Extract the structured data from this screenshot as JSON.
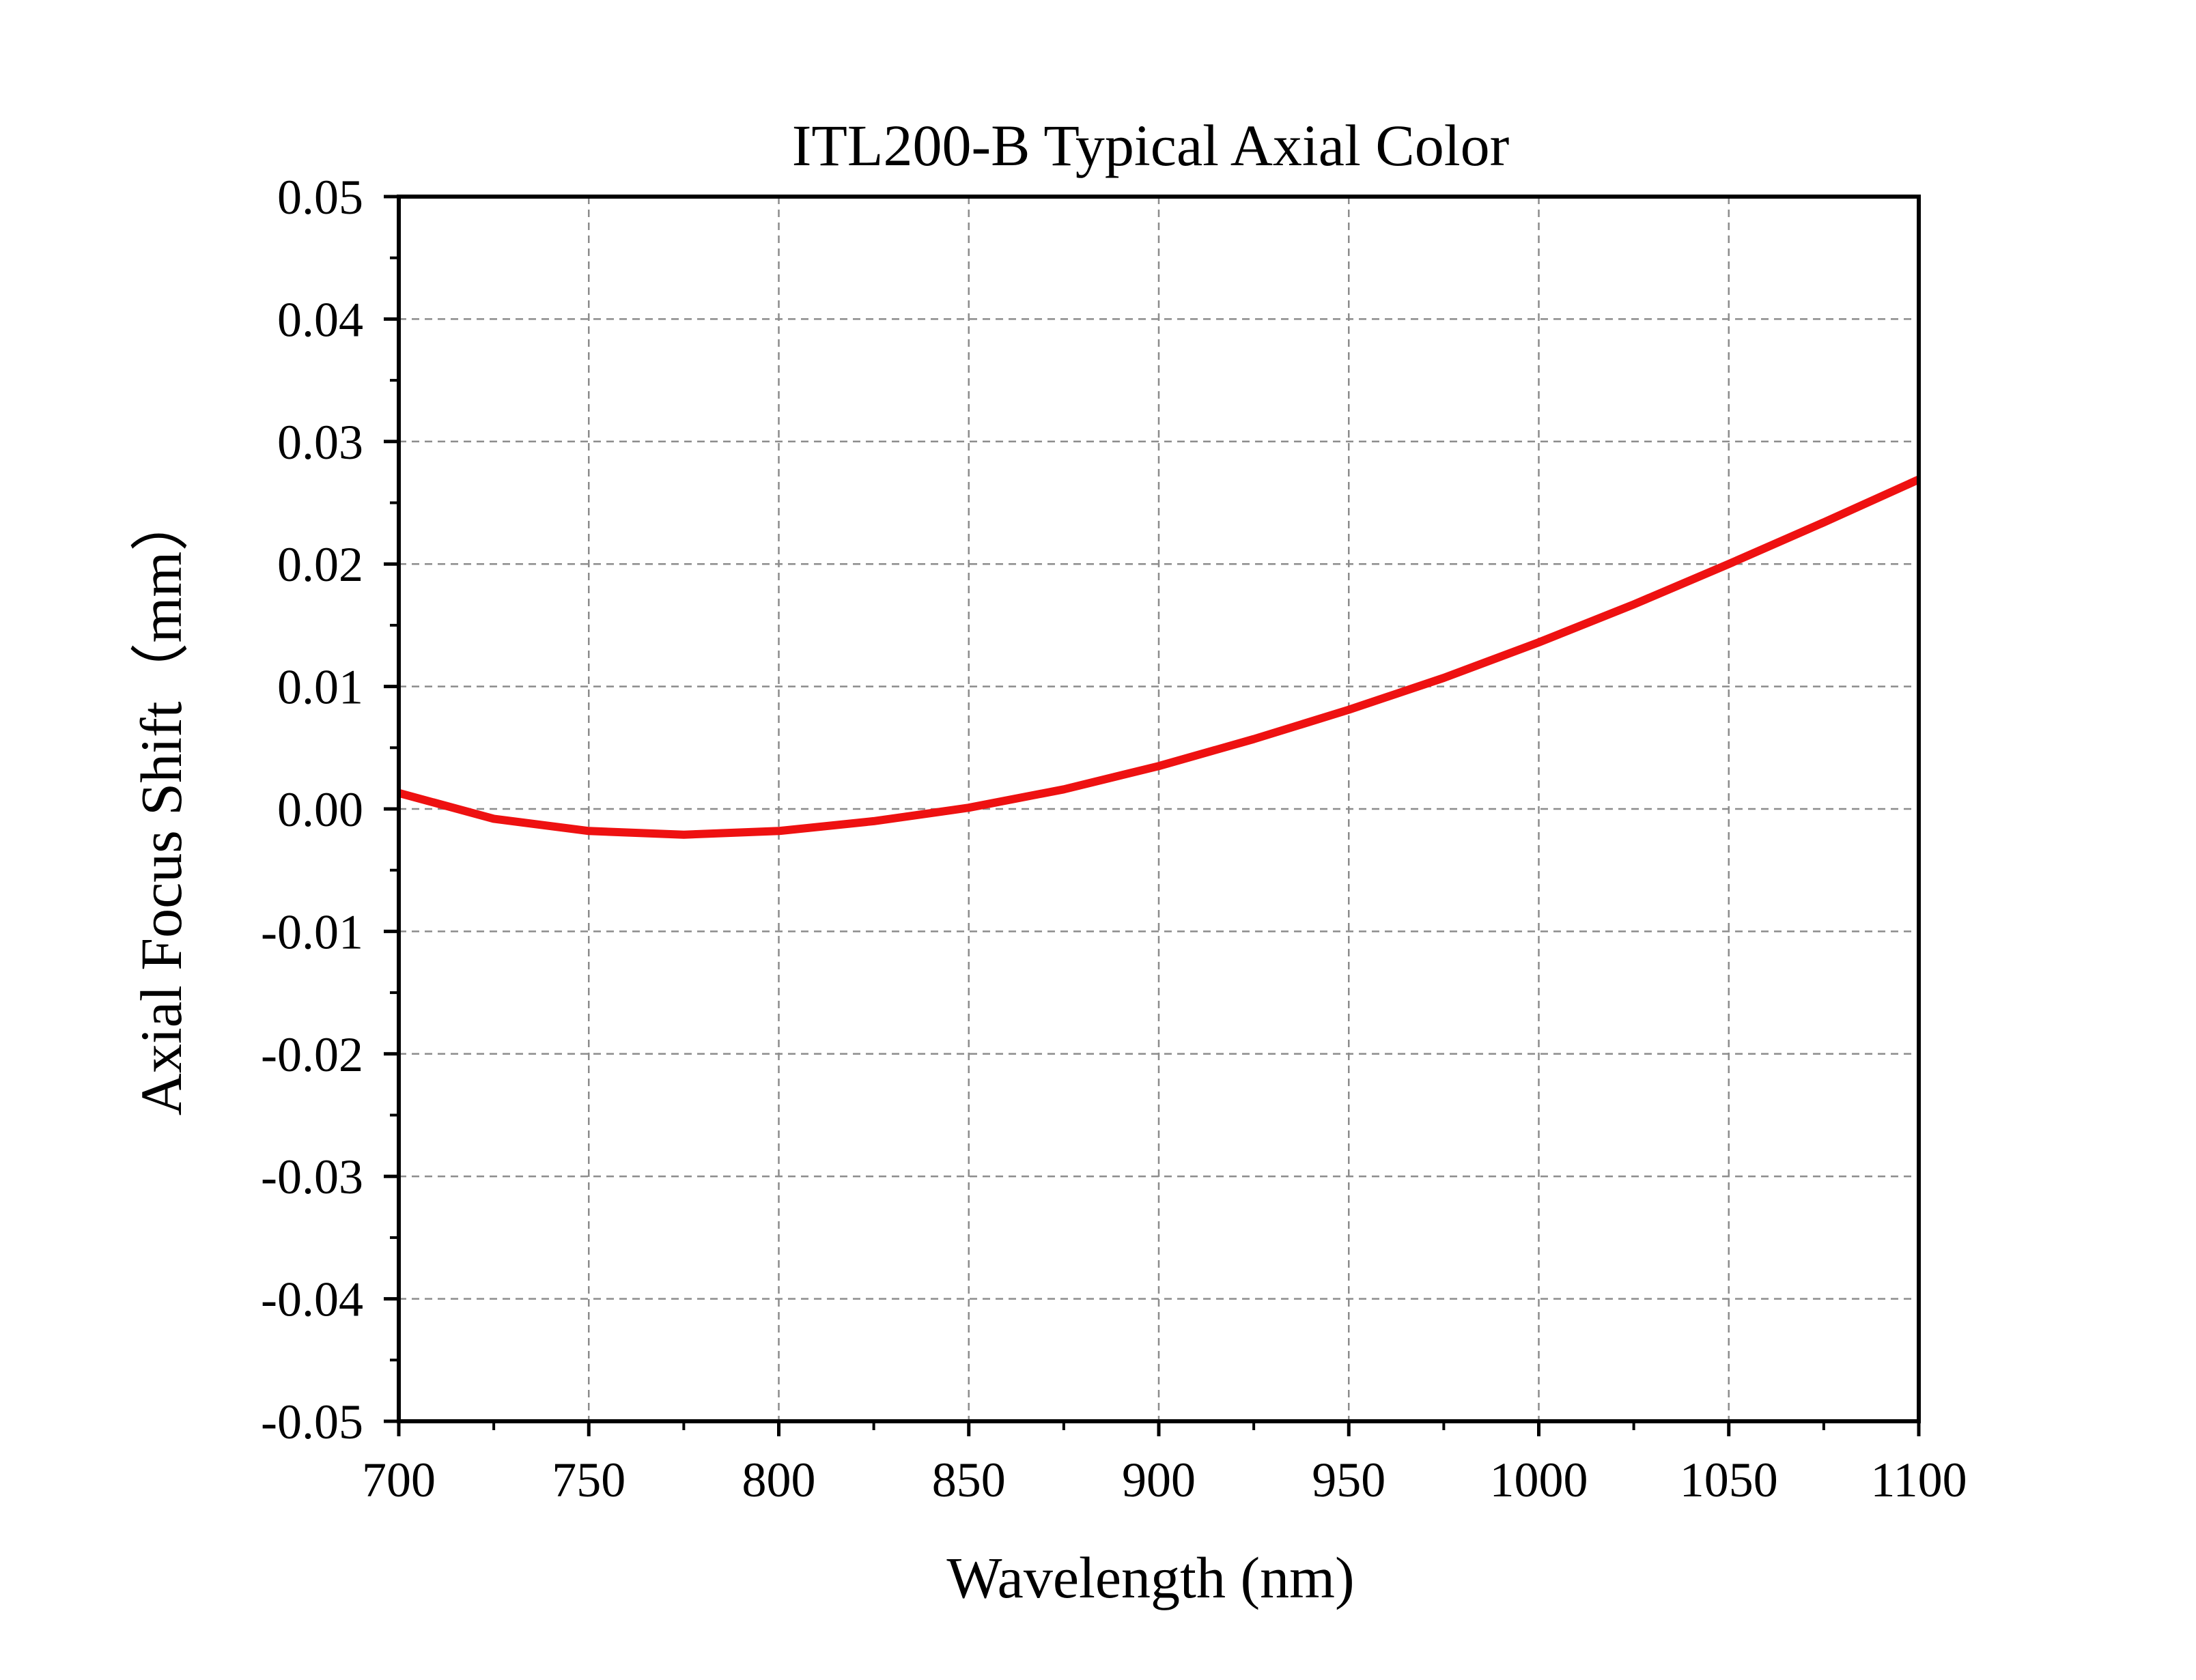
{
  "colors": {
    "background": "#ffffff",
    "axis": "#000000",
    "grid": "#8c8c8c",
    "series": "#ee1111"
  },
  "chart_data": {
    "type": "line",
    "title": "ITL200-B Typical Axial Color",
    "xlabel": "Wavelength (nm)",
    "ylabel": "Axial Focus Shift（mm）",
    "xlim": [
      700,
      1100
    ],
    "ylim": [
      -0.05,
      0.05
    ],
    "x_ticks": [
      700,
      750,
      800,
      850,
      900,
      950,
      1000,
      1050,
      1100
    ],
    "x_tick_labels": [
      "700",
      "750",
      "800",
      "850",
      "900",
      "950",
      "1000",
      "1050",
      "1100"
    ],
    "y_ticks": [
      0.05,
      0.04,
      0.03,
      0.02,
      0.01,
      0.0,
      -0.01,
      -0.02,
      -0.03,
      -0.04,
      -0.05
    ],
    "y_tick_labels": [
      "0.05",
      "0.04",
      "0.03",
      "0.02",
      "0.01",
      "0.00",
      "-0.01",
      "-0.02",
      "-0.03",
      "-0.04",
      "-0.05"
    ],
    "grid": true,
    "grid_style": "dashed",
    "legend": "none",
    "series": [
      {
        "color": "#ee1111",
        "x": [
          700,
          725,
          750,
          775,
          800,
          825,
          850,
          875,
          900,
          925,
          950,
          975,
          1000,
          1025,
          1050,
          1075,
          1100
        ],
        "y": [
          0.0013,
          -0.0008,
          -0.0018,
          -0.0021,
          -0.0018,
          -0.001,
          0.0001,
          0.0016,
          0.0035,
          0.0057,
          0.0081,
          0.0107,
          0.0136,
          0.0167,
          0.02,
          0.0234,
          0.0269
        ]
      }
    ]
  }
}
